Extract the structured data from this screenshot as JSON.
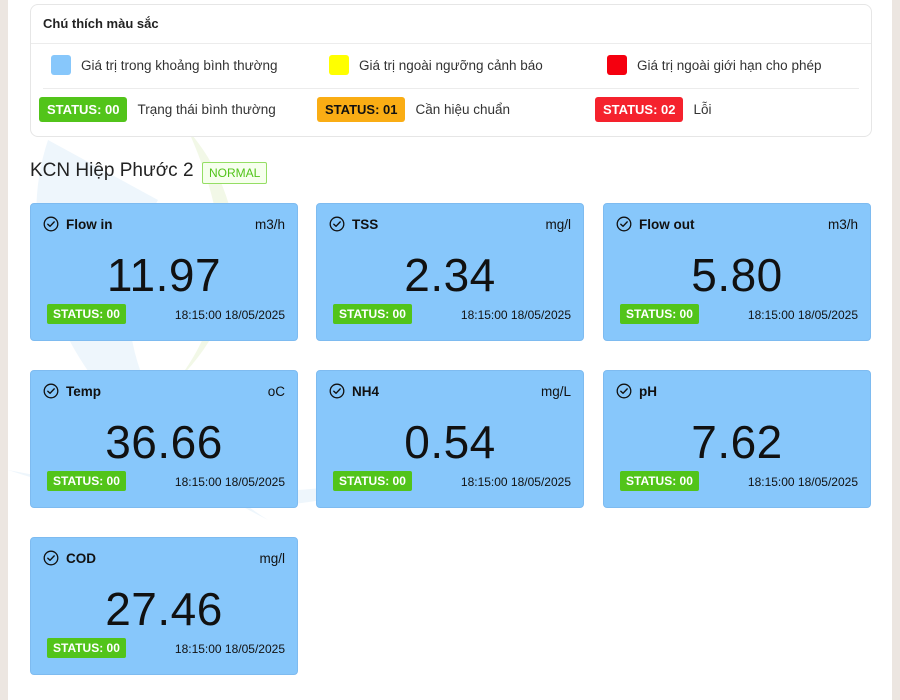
{
  "legend": {
    "title": "Chú thích màu sắc",
    "colors": [
      {
        "color": "#87c7fb",
        "label": "Giá trị trong khoảng bình thường"
      },
      {
        "color": "#ffff00",
        "label": "Giá trị ngoài ngưỡng cảnh báo"
      },
      {
        "color": "#f5000f",
        "label": "Giá trị ngoài giới hạn cho phép"
      }
    ],
    "statuses": [
      {
        "code": "STATUS: 00",
        "color": "#52c41a",
        "label": "Trạng thái bình thường"
      },
      {
        "code": "STATUS: 01",
        "color": "#faad14",
        "label": "Cần hiệu chuẩn"
      },
      {
        "code": "STATUS: 02",
        "color": "#f5222d",
        "label": "Lỗi"
      }
    ]
  },
  "station": {
    "name": "KCN Hiệp Phước 2",
    "badge": "NORMAL"
  },
  "cards": [
    {
      "name": "Flow in",
      "unit": "m3/h",
      "value": "11.97",
      "status": "STATUS: 00",
      "time": "18:15:00 18/05/2025"
    },
    {
      "name": "TSS",
      "unit": "mg/l",
      "value": "2.34",
      "status": "STATUS: 00",
      "time": "18:15:00 18/05/2025"
    },
    {
      "name": "Flow out",
      "unit": "m3/h",
      "value": "5.80",
      "status": "STATUS: 00",
      "time": "18:15:00 18/05/2025"
    },
    {
      "name": "Temp",
      "unit": "oC",
      "value": "36.66",
      "status": "STATUS: 00",
      "time": "18:15:00 18/05/2025"
    },
    {
      "name": "NH4",
      "unit": "mg/L",
      "value": "0.54",
      "status": "STATUS: 00",
      "time": "18:15:00 18/05/2025"
    },
    {
      "name": "pH",
      "unit": "",
      "value": "7.62",
      "status": "STATUS: 00",
      "time": "18:15:00 18/05/2025"
    },
    {
      "name": "COD",
      "unit": "mg/l",
      "value": "27.46",
      "status": "STATUS: 00",
      "time": "18:15:00 18/05/2025"
    }
  ],
  "icons": {
    "card_icon": "check-circle-icon",
    "watermark": "water-drop-logo"
  }
}
